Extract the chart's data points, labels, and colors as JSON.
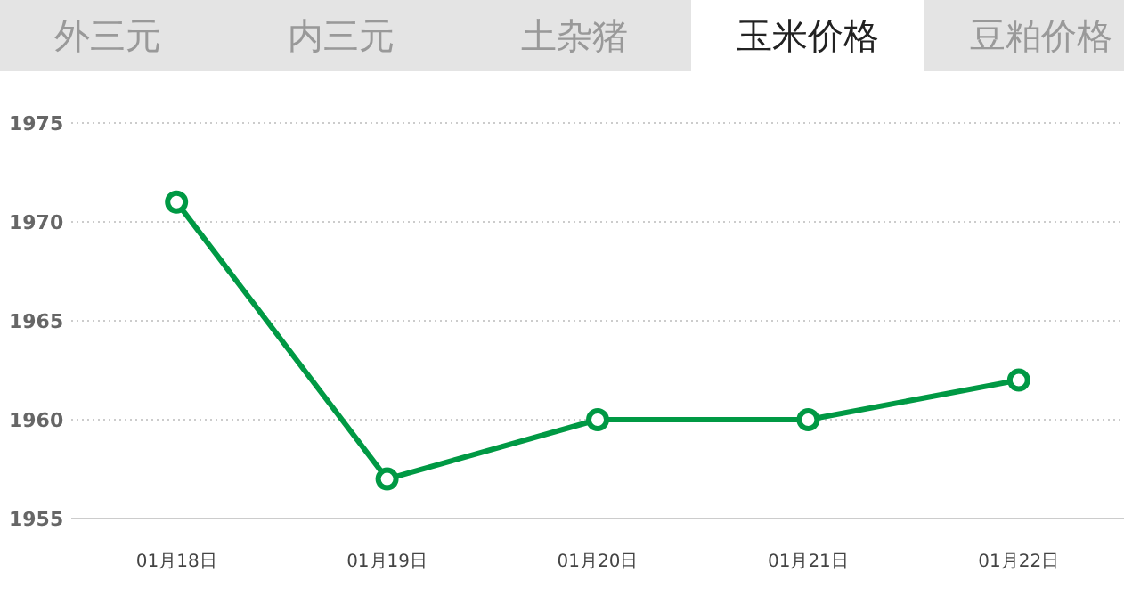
{
  "chart_data": {
    "type": "line",
    "title": "玉米价格",
    "annotations": [
      "外三元",
      "内三元",
      "土杂猪",
      "豆粕价格"
    ],
    "categories": [
      "01月18日",
      "01月19日",
      "01月20日",
      "01月21日",
      "01月22日"
    ],
    "series": [
      {
        "color": "#009944",
        "values": [
          1971,
          1957,
          1960,
          1960,
          1962
        ]
      }
    ],
    "ylim": [
      1955,
      1975
    ],
    "yticks": [
      1955,
      1960,
      1965,
      1970,
      1975
    ],
    "grid": "y",
    "marker": "circle",
    "line_style": "solid"
  }
}
